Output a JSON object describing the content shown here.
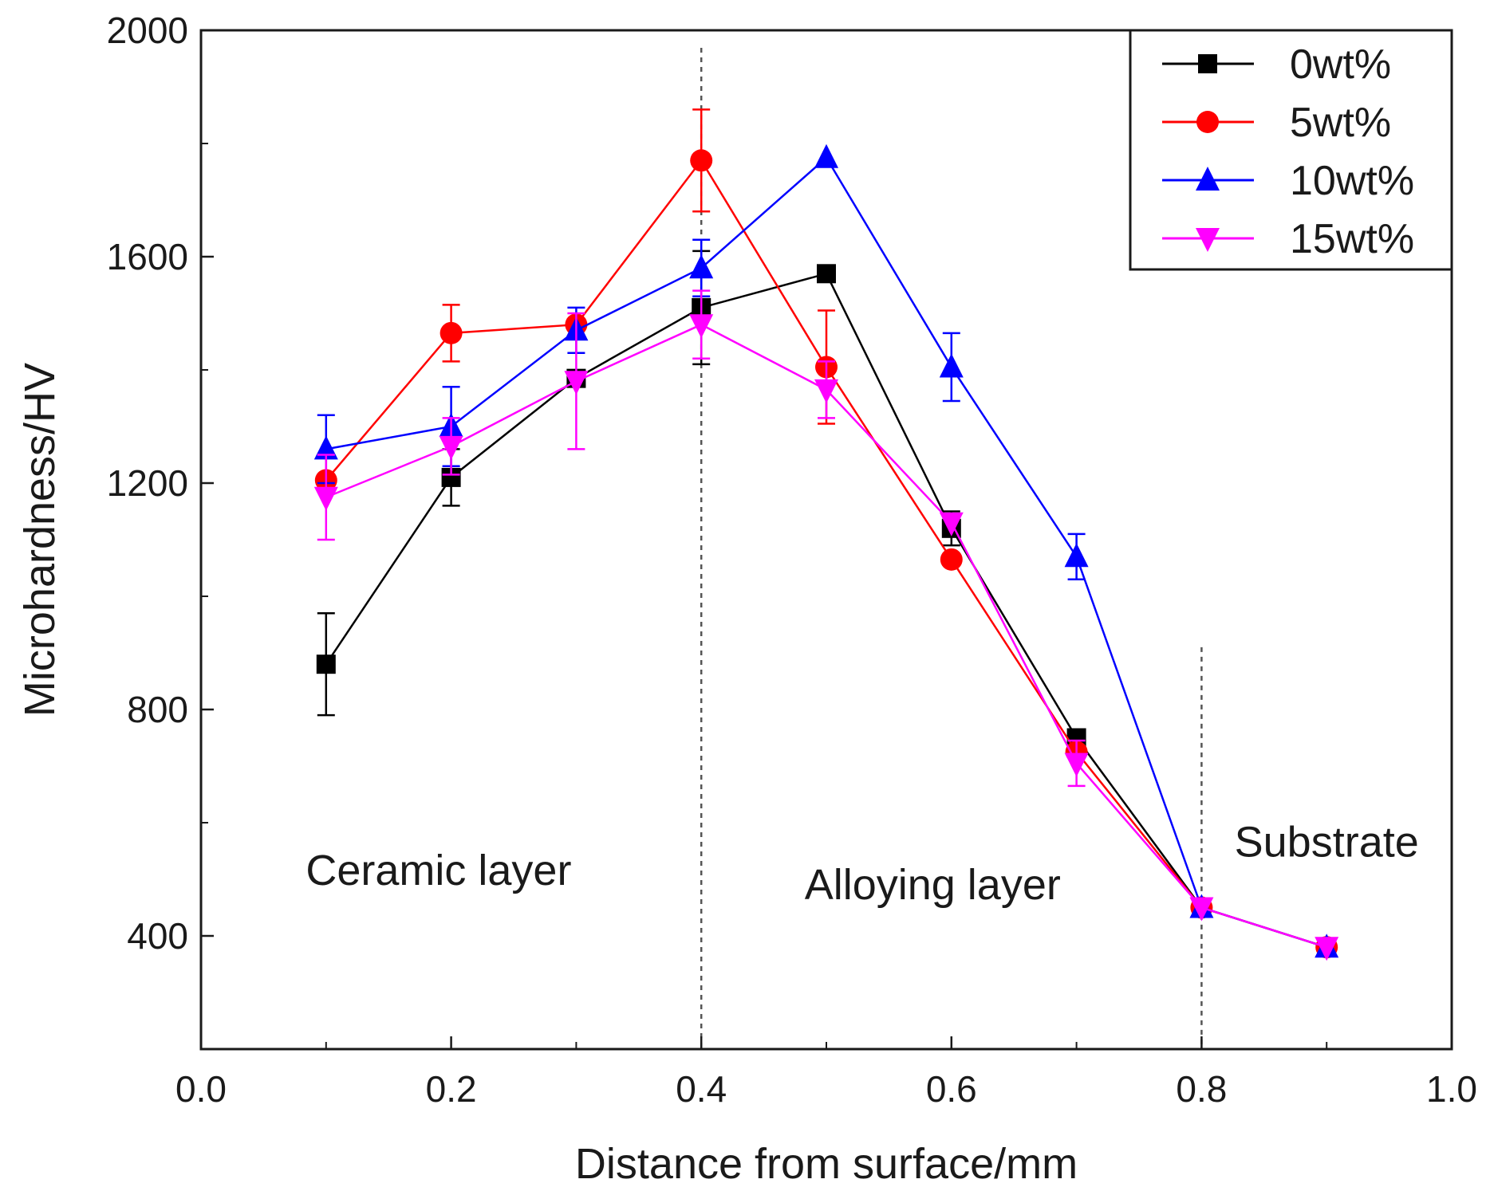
{
  "chart_data": {
    "type": "line",
    "title": "",
    "xlabel": "Distance from surface/mm",
    "ylabel": "Microhardness/HV",
    "xlim": [
      0.0,
      1.0
    ],
    "ylim": [
      200,
      2000
    ],
    "xticks": [
      0.0,
      0.2,
      0.4,
      0.6,
      0.8,
      1.0
    ],
    "xtick_labels": [
      "0.0",
      "0.2",
      "0.4",
      "0.6",
      "0.8",
      "1.0"
    ],
    "yticks": [
      400,
      800,
      1200,
      1600,
      2000
    ],
    "ytick_labels": [
      "400",
      "800",
      "1200",
      "1600",
      "2000"
    ],
    "grid": false,
    "legend_position": "top-right",
    "vertical_dividers": [
      0.4,
      0.8
    ],
    "annotations": [
      {
        "text": "Ceramic layer",
        "x": 0.19,
        "y": 490
      },
      {
        "text": "Alloying layer",
        "x": 0.585,
        "y": 465
      },
      {
        "text": "Substrate",
        "x": 0.9,
        "y": 540
      }
    ],
    "series": [
      {
        "name": "0wt%",
        "color": "#000000",
        "marker": "square",
        "x": [
          0.1,
          0.2,
          0.3,
          0.4,
          0.5,
          0.6,
          0.7,
          0.8,
          0.9
        ],
        "y": [
          880,
          1210,
          1385,
          1510,
          1570,
          1120,
          750,
          450,
          380
        ],
        "err": [
          90,
          50,
          0,
          100,
          0,
          30,
          0,
          0,
          0
        ]
      },
      {
        "name": "5wt%",
        "color": "#ff0000",
        "marker": "circle",
        "x": [
          0.1,
          0.2,
          0.3,
          0.4,
          0.5,
          0.6,
          0.7,
          0.8,
          0.9
        ],
        "y": [
          1205,
          1465,
          1480,
          1770,
          1405,
          1065,
          725,
          450,
          380
        ],
        "err": [
          0,
          50,
          0,
          90,
          100,
          0,
          0,
          0,
          0
        ]
      },
      {
        "name": "10wt%",
        "color": "#0000ff",
        "marker": "triangle-up",
        "x": [
          0.1,
          0.2,
          0.3,
          0.4,
          0.5,
          0.6,
          0.7,
          0.8,
          0.9
        ],
        "y": [
          1260,
          1300,
          1470,
          1580,
          1775,
          1405,
          1070,
          450,
          380
        ],
        "err": [
          60,
          70,
          40,
          50,
          0,
          60,
          40,
          0,
          0
        ]
      },
      {
        "name": "15wt%",
        "color": "#ff00ff",
        "marker": "triangle-down",
        "x": [
          0.1,
          0.2,
          0.3,
          0.4,
          0.5,
          0.6,
          0.7,
          0.8,
          0.9
        ],
        "y": [
          1175,
          1265,
          1380,
          1480,
          1365,
          1130,
          705,
          450,
          380
        ],
        "err": [
          75,
          50,
          120,
          60,
          50,
          0,
          40,
          0,
          0
        ]
      }
    ]
  }
}
